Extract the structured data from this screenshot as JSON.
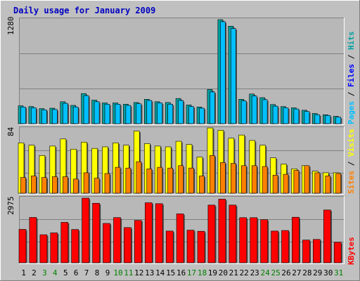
{
  "chart_data": [
    {
      "type": "bar",
      "title": "Daily usage for January 2009",
      "panel": "top",
      "ylabel_parts": [
        "Pages",
        "Files",
        "Hits"
      ],
      "ymax_label": "1280",
      "ylim": [
        0,
        1280
      ],
      "categories": [
        "1",
        "2",
        "3",
        "4",
        "5",
        "6",
        "7",
        "8",
        "9",
        "10",
        "11",
        "12",
        "13",
        "14",
        "15",
        "16",
        "17",
        "18",
        "19",
        "20",
        "21",
        "22",
        "23",
        "24",
        "25",
        "26",
        "27",
        "28",
        "29",
        "30",
        "31"
      ],
      "series": [
        {
          "name": "Hits",
          "values": [
            220,
            210,
            185,
            190,
            270,
            225,
            370,
            290,
            255,
            255,
            240,
            260,
            300,
            270,
            260,
            310,
            230,
            205,
            420,
            1280,
            1200,
            300,
            365,
            320,
            235,
            210,
            195,
            165,
            125,
            110,
            90
          ]
        },
        {
          "name": "Files",
          "values": [
            205,
            195,
            170,
            175,
            250,
            205,
            345,
            270,
            240,
            240,
            225,
            245,
            285,
            255,
            240,
            285,
            210,
            190,
            390,
            1255,
            1170,
            280,
            340,
            295,
            215,
            195,
            180,
            150,
            110,
            100,
            80
          ]
        }
      ]
    },
    {
      "type": "bar",
      "panel": "middle",
      "ylabel_parts": [
        "Sites",
        "Visits"
      ],
      "ymax_label": "84",
      "ylim": [
        0,
        84
      ],
      "categories": [
        "1",
        "2",
        "3",
        "4",
        "5",
        "6",
        "7",
        "8",
        "9",
        "10",
        "11",
        "12",
        "13",
        "14",
        "15",
        "16",
        "17",
        "18",
        "19",
        "20",
        "21",
        "22",
        "23",
        "24",
        "25",
        "26",
        "27",
        "28",
        "29",
        "30",
        "31"
      ],
      "series": [
        {
          "name": "Visits",
          "values": [
            64,
            61,
            48,
            60,
            69,
            56,
            65,
            57,
            59,
            64,
            61,
            79,
            63,
            60,
            59,
            66,
            62,
            46,
            83,
            80,
            70,
            74,
            67,
            61,
            45,
            37,
            31,
            35,
            28,
            26,
            26
          ]
        },
        {
          "name": "Sites",
          "values": [
            20,
            22,
            20,
            21,
            21,
            18,
            26,
            19,
            25,
            33,
            32,
            40,
            31,
            33,
            32,
            35,
            32,
            22,
            48,
            39,
            38,
            35,
            35,
            34,
            23,
            24,
            29,
            35,
            26,
            22,
            25
          ]
        }
      ]
    },
    {
      "type": "bar",
      "panel": "bottom",
      "ylabel_parts": [
        "KBytes"
      ],
      "ymax_label": "2975",
      "ylim": [
        0,
        2975
      ],
      "categories": [
        "1",
        "2",
        "3",
        "4",
        "5",
        "6",
        "7",
        "8",
        "9",
        "10",
        "11",
        "12",
        "13",
        "14",
        "15",
        "16",
        "17",
        "18",
        "19",
        "20",
        "21",
        "22",
        "23",
        "24",
        "25",
        "26",
        "27",
        "28",
        "29",
        "30",
        "31"
      ],
      "series": [
        {
          "name": "KBytes",
          "values": [
            1535,
            2085,
            1290,
            1375,
            1860,
            1530,
            2975,
            2740,
            1810,
            2080,
            1620,
            1950,
            2760,
            2720,
            1460,
            2250,
            1500,
            1450,
            2655,
            2925,
            2655,
            2075,
            2075,
            1985,
            1460,
            1485,
            2095,
            1045,
            1075,
            2430,
            940
          ]
        }
      ]
    }
  ],
  "weekend_days": [
    3,
    4,
    10,
    11,
    17,
    18,
    24,
    25,
    31
  ],
  "colors": {
    "background": "#c0c0c0",
    "plot": "#b8b8b8",
    "title": "#0000c0",
    "hits": "#00a0a0",
    "files": "#0000ff",
    "pages": "#00c0ff",
    "visits": "#ffff00",
    "sites": "#ff8000",
    "kbytes": "#ff0000",
    "weekday_label": "#000000",
    "weekend_label": "#008000"
  }
}
